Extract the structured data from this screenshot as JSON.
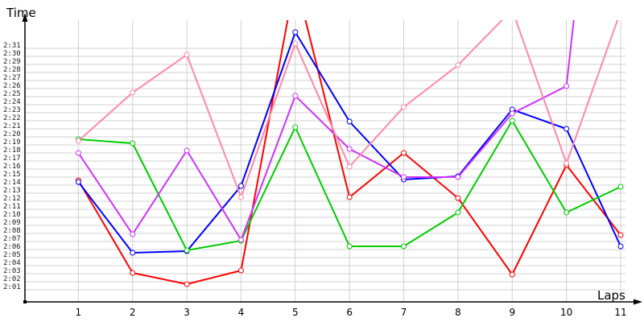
{
  "chart_data": {
    "type": "line",
    "title": "",
    "xlabel": "Laps",
    "ylabel": "Time",
    "x": [
      1,
      2,
      3,
      4,
      5,
      6,
      7,
      8,
      9,
      10,
      11
    ],
    "xlim": [
      0,
      11
    ],
    "ylim_seconds": [
      119.5,
      154.5
    ],
    "y_unit": "seconds (shown as m:ss)",
    "y_tick_labels": [
      "2:01",
      "2:02",
      "2:03",
      "2:04",
      "2:05",
      "2:06",
      "2:07",
      "2:08",
      "2:09",
      "2:10",
      "2:11",
      "2:12",
      "2:13",
      "2:14",
      "2:15",
      "2:16",
      "2:17",
      "2:18",
      "2:19",
      "2:20",
      "2:21",
      "2:22",
      "2:23",
      "2:24",
      "2:25",
      "2:26",
      "2:27",
      "2:28",
      "2:29",
      "2:30",
      "2:31"
    ],
    "x_tick_labels": [
      "1",
      "2",
      "3",
      "4",
      "5",
      "6",
      "7",
      "8",
      "9",
      "10",
      "11"
    ],
    "grid": true,
    "legend": "none",
    "series": [
      {
        "color": "#ff0000",
        "values": [
          134.6,
          123.1,
          121.7,
          123.4,
          159.6,
          132.5,
          138.0,
          132.4,
          122.9,
          136.5,
          127.8
        ]
      },
      {
        "color": "#0000ff",
        "values": [
          134.4,
          125.6,
          125.8,
          133.9,
          153.0,
          141.9,
          134.7,
          135.1,
          143.4,
          141.0,
          126.4
        ]
      },
      {
        "color": "#00cc00",
        "values": [
          139.7,
          139.2,
          125.9,
          127.1,
          141.2,
          126.4,
          126.4,
          130.6,
          142.0,
          130.6,
          133.8
        ]
      },
      {
        "color": "#cc33ff",
        "values": [
          138.0,
          127.9,
          138.3,
          127.2,
          145.1,
          138.5,
          135.0,
          135.0,
          142.9,
          146.3,
          207.0
        ]
      },
      {
        "color": "#ff88aa",
        "values": [
          139.5,
          145.5,
          150.2,
          132.5,
          151.6,
          136.3,
          143.7,
          148.9,
          155.8,
          136.7,
          155.6
        ]
      }
    ]
  }
}
